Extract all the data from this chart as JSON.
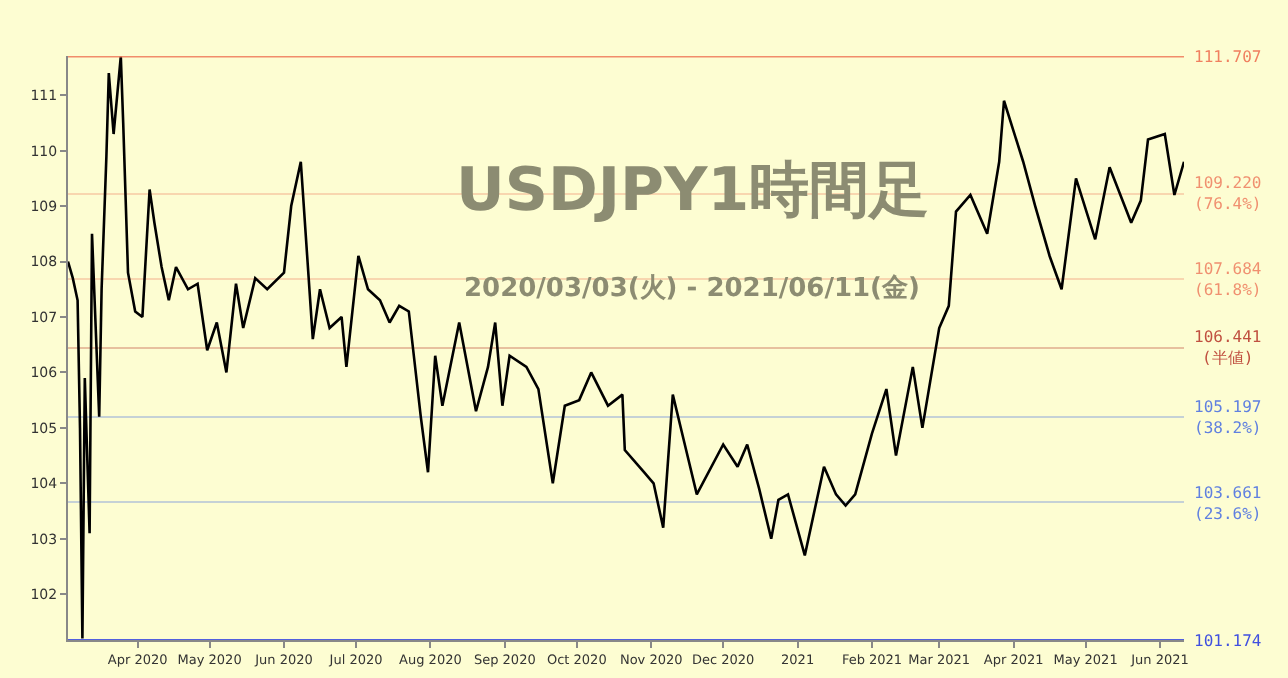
{
  "chart_data": {
    "type": "line",
    "title": "USDJPY1時間足",
    "subtitle": "2020/03/03(火) - 2021/06/11(金)",
    "x": [
      "2020-03-03",
      "2020-03-05",
      "2020-03-07",
      "2020-03-08",
      "2020-03-09",
      "2020-03-10",
      "2020-03-12",
      "2020-03-13",
      "2020-03-16",
      "2020-03-17",
      "2020-03-19",
      "2020-03-20",
      "2020-03-22",
      "2020-03-25",
      "2020-03-26",
      "2020-03-28",
      "2020-03-31",
      "2020-04-03",
      "2020-04-06",
      "2020-04-08",
      "2020-04-11",
      "2020-04-14",
      "2020-04-17",
      "2020-04-22",
      "2020-04-26",
      "2020-04-30",
      "2020-05-04",
      "2020-05-08",
      "2020-05-12",
      "2020-05-15",
      "2020-05-20",
      "2020-05-25",
      "2020-06-01",
      "2020-06-04",
      "2020-06-08",
      "2020-06-13",
      "2020-06-16",
      "2020-06-20",
      "2020-06-25",
      "2020-06-27",
      "2020-07-02",
      "2020-07-06",
      "2020-07-11",
      "2020-07-15",
      "2020-07-19",
      "2020-07-23",
      "2020-07-28",
      "2020-07-31",
      "2020-08-03",
      "2020-08-06",
      "2020-08-13",
      "2020-08-20",
      "2020-08-25",
      "2020-08-28",
      "2020-08-31",
      "2020-09-03",
      "2020-09-10",
      "2020-09-15",
      "2020-09-21",
      "2020-09-26",
      "2020-10-02",
      "2020-10-07",
      "2020-10-14",
      "2020-10-20",
      "2020-10-21",
      "2020-10-29",
      "2020-11-02",
      "2020-11-06",
      "2020-11-10",
      "2020-11-15",
      "2020-11-20",
      "2020-12-01",
      "2020-12-07",
      "2020-12-11",
      "2020-12-16",
      "2020-12-21",
      "2020-12-24",
      "2020-12-28",
      "2021-01-04",
      "2021-01-12",
      "2021-01-17",
      "2021-01-21",
      "2021-01-25",
      "2021-02-01",
      "2021-02-07",
      "2021-02-11",
      "2021-02-18",
      "2021-02-22",
      "2021-03-01",
      "2021-03-05",
      "2021-03-08",
      "2021-03-14",
      "2021-03-21",
      "2021-03-26",
      "2021-03-28",
      "2021-04-05",
      "2021-04-10",
      "2021-04-16",
      "2021-04-21",
      "2021-04-27",
      "2021-05-05",
      "2021-05-11",
      "2021-05-20",
      "2021-05-24",
      "2021-05-27",
      "2021-06-03",
      "2021-06-07",
      "2021-06-11"
    ],
    "values": [
      108.0,
      107.7,
      107.3,
      105.0,
      101.2,
      105.9,
      103.1,
      108.5,
      105.2,
      107.5,
      109.9,
      111.4,
      110.3,
      111.7,
      110.5,
      107.8,
      107.1,
      107.0,
      109.3,
      108.7,
      107.9,
      107.3,
      107.9,
      107.5,
      107.6,
      106.4,
      106.9,
      106.0,
      107.6,
      106.8,
      107.7,
      107.5,
      107.8,
      109.0,
      109.8,
      106.6,
      107.5,
      106.8,
      107.0,
      106.1,
      108.1,
      107.5,
      107.3,
      106.9,
      107.2,
      107.1,
      105.2,
      104.2,
      106.3,
      105.4,
      106.9,
      105.3,
      106.1,
      106.9,
      105.4,
      106.3,
      106.1,
      105.7,
      104.0,
      105.4,
      105.5,
      106.0,
      105.4,
      105.6,
      104.6,
      104.2,
      104.0,
      103.2,
      105.6,
      104.7,
      103.8,
      104.7,
      104.3,
      104.7,
      103.9,
      103.0,
      103.7,
      103.8,
      102.7,
      104.3,
      103.8,
      103.6,
      103.8,
      104.9,
      105.7,
      104.5,
      106.1,
      105.0,
      106.8,
      107.2,
      108.9,
      109.2,
      108.5,
      109.8,
      110.9,
      109.8,
      109.0,
      108.1,
      107.5,
      109.5,
      108.4,
      109.7,
      108.7,
      109.1,
      110.2,
      110.3,
      109.2,
      109.8
    ],
    "color": "#000000",
    "xlim": [
      "2020-03-03",
      "2021-06-11"
    ],
    "xticks": [
      {
        "value": "2020-04-01",
        "label": "Apr 2020"
      },
      {
        "value": "2020-05-01",
        "label": "May 2020"
      },
      {
        "value": "2020-06-01",
        "label": "Jun 2020"
      },
      {
        "value": "2020-07-01",
        "label": "Jul 2020"
      },
      {
        "value": "2020-08-01",
        "label": "Aug 2020"
      },
      {
        "value": "2020-09-01",
        "label": "Sep 2020"
      },
      {
        "value": "2020-10-01",
        "label": "Oct 2020"
      },
      {
        "value": "2020-11-01",
        "label": "Nov 2020"
      },
      {
        "value": "2020-12-01",
        "label": "Dec 2020"
      },
      {
        "value": "2021-01-01",
        "label": "2021"
      },
      {
        "value": "2021-02-01",
        "label": "Feb 2021"
      },
      {
        "value": "2021-03-01",
        "label": "Mar 2021"
      },
      {
        "value": "2021-04-01",
        "label": "Apr 2021"
      },
      {
        "value": "2021-05-01",
        "label": "May 2021"
      },
      {
        "value": "2021-06-01",
        "label": "Jun 2021"
      }
    ],
    "ylim": [
      101.174,
      111.707
    ],
    "yticks": [
      102,
      103,
      104,
      105,
      106,
      107,
      108,
      109,
      110,
      111
    ],
    "ref_lines": [
      {
        "axis": "y",
        "value": 111.707,
        "label": "111.707",
        "color": "#f08060"
      },
      {
        "axis": "y",
        "value": 109.22,
        "label": "109.220\n(76.4%)",
        "color": "#f09070"
      },
      {
        "axis": "y",
        "value": 107.684,
        "label": "107.684\n(61.8%)",
        "color": "#f09070"
      },
      {
        "axis": "y",
        "value": 106.441,
        "label": "106.441\n(半値)",
        "color": "#c05040"
      },
      {
        "axis": "y",
        "value": 105.197,
        "label": "105.197\n(38.2%)",
        "color": "#6080e0"
      },
      {
        "axis": "y",
        "value": 103.661,
        "label": "103.661\n(23.6%)",
        "color": "#6080e0"
      },
      {
        "axis": "y",
        "value": 101.174,
        "label": "101.174",
        "color": "#4050e0"
      }
    ]
  }
}
